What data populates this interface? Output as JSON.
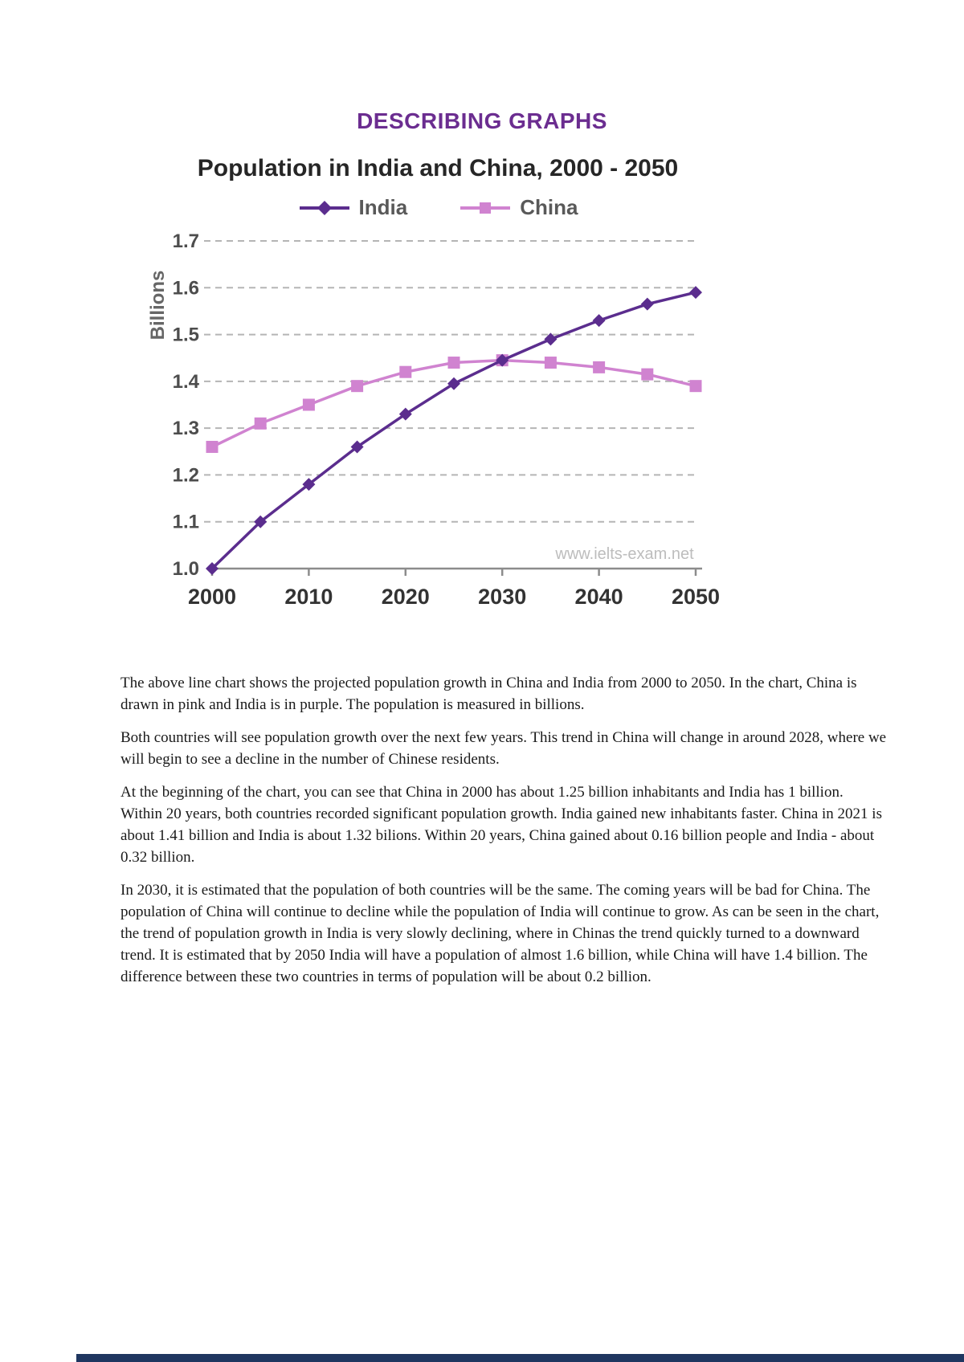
{
  "doc": {
    "title": "DESCRIBING GRAPHS",
    "paragraphs": [
      "The above line chart shows the projected population growth in China and India from 2000 to 2050. In the chart, China is drawn in pink and India is in purple. The population is measured in billions.",
      "Both countries will see population growth over the next few years. This trend in China will change in around 2028, where we will begin to see a decline in the number of Chinese residents.",
      "At the beginning of the chart, you can see that China in 2000 has about 1.25 billion inhabitants and India has 1 billion. Within 20 years, both countries recorded significant population growth. India gained new inhabitants faster. China in 2021 is about 1.41 billion and India is about 1.32 bilions. Within 20 years, China gained about 0.16 billion people and India - about 0.32 billion.",
      "In 2030, it is estimated that the population of both countries will be the same. The coming years will be bad for China. The population of China will continue to decline while the population of India will continue to grow. As can be seen in the chart, the trend of population growth in India is very slowly declining, where in Chinas the trend quickly turned to a downward trend. It is estimated that by 2050 India will have a population of almost 1.6 billion, while China will have 1.4 billion. The difference between these two countries in terms of population will be about 0.2 billion."
    ]
  },
  "chart_data": {
    "type": "line",
    "title": "Population in India and China, 2000 - 2050",
    "ylabel": "Billions",
    "watermark": "www.ielts-exam.net",
    "x": [
      2000,
      2005,
      2010,
      2015,
      2020,
      2025,
      2030,
      2035,
      2040,
      2045,
      2050
    ],
    "x_tick_labels": [
      "2000",
      "2010",
      "2020",
      "2030",
      "2040",
      "2050"
    ],
    "ylim": [
      1.0,
      1.7
    ],
    "y_ticks": [
      1.0,
      1.1,
      1.2,
      1.3,
      1.4,
      1.5,
      1.6,
      1.7
    ],
    "grid": "dashed-horizontal",
    "legend_position": "top",
    "series": [
      {
        "name": "India",
        "color": "#5b2d8e",
        "marker": "diamond",
        "values": [
          1.0,
          1.1,
          1.18,
          1.26,
          1.33,
          1.395,
          1.445,
          1.49,
          1.53,
          1.565,
          1.59
        ]
      },
      {
        "name": "China",
        "color": "#d083d0",
        "marker": "square",
        "values": [
          1.26,
          1.31,
          1.35,
          1.39,
          1.42,
          1.44,
          1.445,
          1.44,
          1.43,
          1.415,
          1.39
        ]
      }
    ]
  },
  "footer": {
    "bar_color": "#1f3660"
  }
}
